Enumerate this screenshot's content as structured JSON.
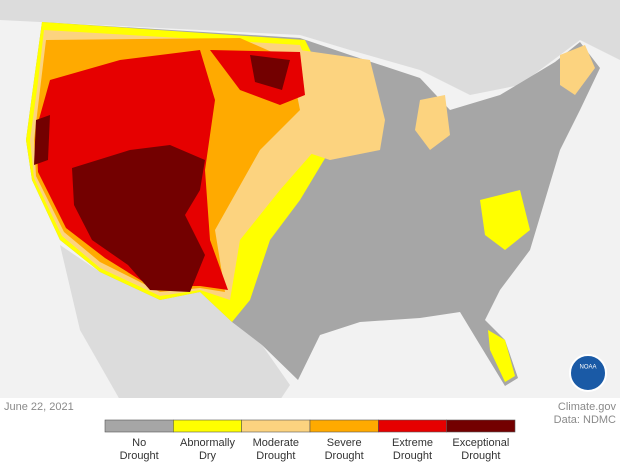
{
  "date": "June 22, 2021",
  "credit": {
    "site": "Climate.gov",
    "source": "Data: NDMC"
  },
  "logo": "NOAA",
  "legend": [
    {
      "lines": [
        "No",
        "Drought"
      ],
      "color": "#a6a6a6"
    },
    {
      "lines": [
        "Abnormally",
        "Dry"
      ],
      "color": "#ffff00"
    },
    {
      "lines": [
        "Moderate",
        "Drought"
      ],
      "color": "#fcd37f"
    },
    {
      "lines": [
        "Severe",
        "Drought"
      ],
      "color": "#ffaa00"
    },
    {
      "lines": [
        "Extreme",
        "Drought"
      ],
      "color": "#e60000"
    },
    {
      "lines": [
        "Exceptional",
        "Drought"
      ],
      "color": "#730000"
    }
  ]
}
